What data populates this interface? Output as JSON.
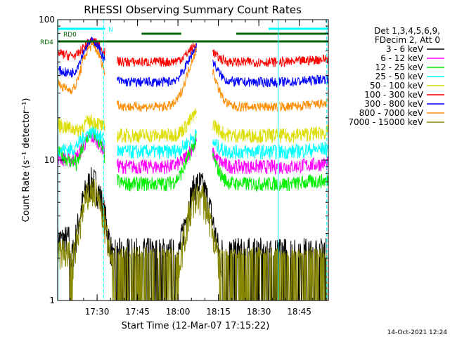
{
  "chart_data": {
    "type": "line",
    "title": "RHESSI Observing Summary Count Rates",
    "xlabel": "Start Time (12-Mar-07 17:15:22)",
    "ylabel": "Count Rate (s⁻¹ detector⁻¹)",
    "y_scale": "log",
    "ylim": [
      1,
      100
    ],
    "y_ticks": [
      {
        "v": 1,
        "label": "1"
      },
      {
        "v": 10,
        "label": "10"
      },
      {
        "v": 100,
        "label": "100"
      }
    ],
    "xlim": [
      17.2561,
      18.93
    ],
    "x_ticks": [
      {
        "v": 17.5,
        "label": "17:30"
      },
      {
        "v": 17.75,
        "label": "17:45"
      },
      {
        "v": 18.0,
        "label": "18:00"
      },
      {
        "v": 18.25,
        "label": "18:15"
      },
      {
        "v": 18.5,
        "label": "18:30"
      },
      {
        "v": 18.75,
        "label": "18:45"
      }
    ],
    "legend_header": [
      "Det 1,3,4,5,6,9,",
      "FDecim 2, Att 0"
    ],
    "series": [
      {
        "name": "3 - 6 keV",
        "color": "#000000",
        "kind": "hi"
      },
      {
        "name": "6 - 12 keV",
        "color": "#ff00ff",
        "kind": "mid",
        "base": 9.0,
        "peak1": 14.5,
        "peak2": 13.5,
        "lead": 10.5
      },
      {
        "name": "12 - 25 keV",
        "color": "#00ee00",
        "kind": "mid",
        "base": 6.8,
        "peak1": 15.5,
        "peak2": 14.5,
        "lead": 11.5
      },
      {
        "name": "25 - 50 keV",
        "color": "#00ffff",
        "kind": "mid",
        "base": 11.5,
        "peak1": 16.0,
        "peak2": 15.5,
        "lead": 12.0
      },
      {
        "name": "50 - 100 keV",
        "color": "#dddd00",
        "kind": "mid",
        "base": 15.0,
        "peak1": 19.0,
        "peak2": 22.0,
        "lead": 18.0
      },
      {
        "name": "100 - 300 keV",
        "color": "#ff0000",
        "kind": "top",
        "base": 50.0,
        "peak1": 70.0,
        "peak2": 68.0,
        "lead": 58.0
      },
      {
        "name": "300 - 800 keV",
        "color": "#0000ff",
        "kind": "top",
        "base": 36.0,
        "peak1": 70.0,
        "peak2": 66.0,
        "lead": 44.0
      },
      {
        "name": "800 - 7000 keV",
        "color": "#ff8c00",
        "kind": "top",
        "base": 24.0,
        "peak1": 65.0,
        "peak2": 63.0,
        "lead": 35.0
      },
      {
        "name": "7000 - 15000 keV",
        "color": "#888800",
        "kind": "lo"
      }
    ],
    "flags": [
      {
        "label": "RD0",
        "color": "#006400"
      },
      {
        "label": "RD4",
        "color": "#006400"
      },
      {
        "label": "N",
        "color": "#00ffff"
      }
    ],
    "timestamp": "14-Oct-2021 12:24"
  }
}
